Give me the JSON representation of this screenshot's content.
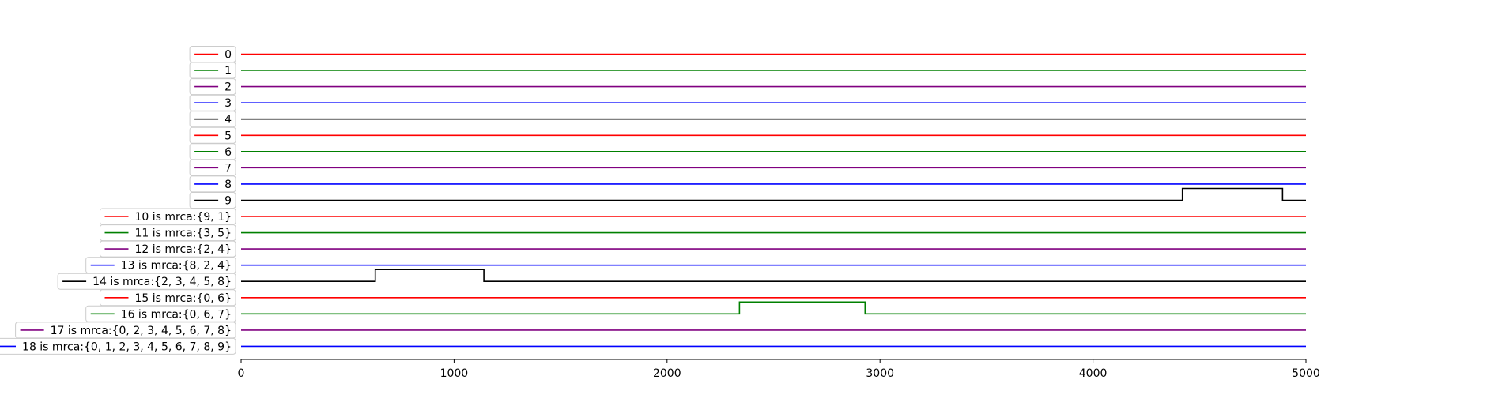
{
  "chart_data": {
    "type": "line",
    "title": "",
    "xlabel": "",
    "ylabel": "",
    "xlim": [
      0,
      5000
    ],
    "xticks": [
      "0",
      "1000",
      "2000",
      "3000",
      "4000",
      "5000"
    ],
    "xtick_values": [
      0,
      1000,
      2000,
      3000,
      4000,
      5000
    ],
    "grid": false,
    "legend_placement": "left of each trace",
    "series": [
      {
        "name": "0",
        "color": "#ff0000",
        "segments": [
          [
            0,
            5000,
            0
          ]
        ]
      },
      {
        "name": "1",
        "color": "#008000",
        "segments": [
          [
            0,
            5000,
            0
          ]
        ]
      },
      {
        "name": "2",
        "color": "#800080",
        "segments": [
          [
            0,
            5000,
            0
          ]
        ]
      },
      {
        "name": "3",
        "color": "#0000ff",
        "segments": [
          [
            0,
            5000,
            0
          ]
        ]
      },
      {
        "name": "4",
        "color": "#000000",
        "segments": [
          [
            0,
            5000,
            0
          ]
        ]
      },
      {
        "name": "5",
        "color": "#ff0000",
        "segments": [
          [
            0,
            5000,
            0
          ]
        ]
      },
      {
        "name": "6",
        "color": "#008000",
        "segments": [
          [
            0,
            5000,
            0
          ]
        ]
      },
      {
        "name": "7",
        "color": "#800080",
        "segments": [
          [
            0,
            5000,
            0
          ]
        ]
      },
      {
        "name": "8",
        "color": "#0000ff",
        "segments": [
          [
            0,
            5000,
            0
          ]
        ]
      },
      {
        "name": "9",
        "color": "#000000",
        "segments": [
          [
            0,
            4420,
            0
          ],
          [
            4420,
            4890,
            1
          ],
          [
            4890,
            5000,
            0
          ]
        ]
      },
      {
        "name": "10 is mrca:{9, 1}",
        "color": "#ff0000",
        "segments": [
          [
            0,
            5000,
            0
          ]
        ]
      },
      {
        "name": "11 is mrca:{3, 5}",
        "color": "#008000",
        "segments": [
          [
            0,
            5000,
            0
          ]
        ]
      },
      {
        "name": "12 is mrca:{2, 4}",
        "color": "#800080",
        "segments": [
          [
            0,
            5000,
            0
          ]
        ]
      },
      {
        "name": "13 is mrca:{8, 2, 4}",
        "color": "#0000ff",
        "segments": [
          [
            0,
            5000,
            0
          ]
        ]
      },
      {
        "name": "14 is mrca:{2, 3, 4, 5, 8}",
        "color": "#000000",
        "segments": [
          [
            0,
            630,
            0
          ],
          [
            630,
            1140,
            1
          ],
          [
            1140,
            5000,
            0
          ]
        ]
      },
      {
        "name": "15 is mrca:{0, 6}",
        "color": "#ff0000",
        "segments": [
          [
            0,
            5000,
            0
          ]
        ]
      },
      {
        "name": "16 is mrca:{0, 6, 7}",
        "color": "#008000",
        "segments": [
          [
            0,
            2340,
            0
          ],
          [
            2340,
            2930,
            1
          ],
          [
            2930,
            5000,
            0
          ]
        ]
      },
      {
        "name": "17 is mrca:{0, 2, 3, 4, 5, 6, 7, 8}",
        "color": "#800080",
        "segments": [
          [
            0,
            5000,
            0
          ]
        ]
      },
      {
        "name": "18 is mrca:{0, 1, 2, 3, 4, 5, 6, 7, 8, 9}",
        "color": "#0000ff",
        "segments": [
          [
            0,
            5000,
            0
          ]
        ]
      }
    ]
  }
}
